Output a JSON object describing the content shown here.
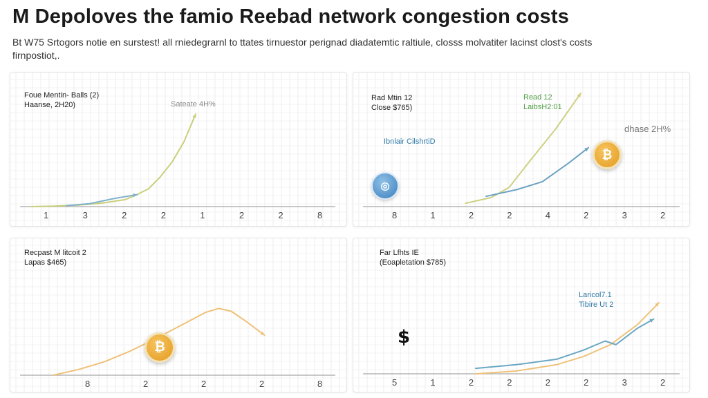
{
  "title": "M Depoloves the famio Reebad network congestion costs",
  "subtitle": "Bt W75 Srtogors notie en surstest! all rniedegrarnl to ttates tirnuestor perignad diadatemtic raltiule, closss molvatiter lacinst clost's costs firnpostiot,.",
  "chart_data": [
    {
      "type": "line",
      "label_line1": "Foue Mentin- Balls (2)",
      "label_line2": "Haanse, 2H20)",
      "annotation": "Sateate 4H%",
      "tick_labels": [
        "1",
        "3",
        "2",
        "2",
        "1",
        "2",
        "2",
        "8"
      ],
      "xlim": [
        0,
        10
      ],
      "ylim": [
        0,
        10
      ],
      "series": [
        {
          "color": "#c9cf7a",
          "x": [
            0,
            1,
            2,
            3,
            4,
            4.5,
            5,
            5.5,
            6,
            6.5,
            7
          ],
          "y": [
            0,
            0.05,
            0.15,
            0.35,
            0.7,
            1.2,
            1.8,
            3.0,
            4.5,
            6.5,
            9.3
          ]
        },
        {
          "color": "#7fb0cc",
          "x": [
            1.5,
            2.5,
            3.5,
            4.5
          ],
          "y": [
            0.1,
            0.3,
            0.8,
            1.2
          ]
        }
      ]
    },
    {
      "type": "line",
      "label_line1": "Rad Mtin 12",
      "label_line2": "Close $765)",
      "annotation_green_1": "Read 12",
      "annotation_green_2": "LaibsH2:01",
      "annotation_gray": "dhase 2H%",
      "annotation_blue": "Ibnlair CilshrtiD",
      "tick_labels": [
        "8",
        "1",
        "2",
        "2",
        "4",
        "2",
        "3",
        "2"
      ],
      "xlim": [
        0,
        10
      ],
      "ylim": [
        0,
        10
      ],
      "series": [
        {
          "color": "#cfd082",
          "x": [
            2.5,
            3.5,
            4.2,
            5,
            6,
            7
          ],
          "y": [
            0.3,
            0.8,
            1.7,
            4.0,
            6.8,
            10.0
          ]
        },
        {
          "color": "#6aa2c4",
          "x": [
            3.3,
            4.5,
            5.5,
            6.5,
            7.3
          ],
          "y": [
            0.9,
            1.5,
            2.2,
            3.8,
            5.2
          ]
        }
      ]
    },
    {
      "type": "line",
      "label_line1": "Recpast M litcoit 2",
      "label_line2": "Lapas $465)",
      "tick_labels": [
        "8",
        "2",
        "2",
        "2",
        "8"
      ],
      "xlim": [
        0,
        10
      ],
      "ylim": [
        0,
        10
      ],
      "series": [
        {
          "color": "#efc077",
          "x": [
            0,
            1,
            2,
            3,
            4,
            5,
            6,
            6.5,
            7,
            7.6,
            8.3
          ],
          "y": [
            0,
            0.6,
            1.4,
            2.5,
            3.8,
            5.2,
            6.6,
            7.0,
            6.7,
            5.6,
            4.2
          ]
        }
      ]
    },
    {
      "type": "line",
      "label_line1": "Far Lfhts IE",
      "label_line2": "(Eoapletation $785)",
      "annotation_blue_1": "Laricol7.1",
      "annotation_blue_2": "Tibire Ut 2",
      "tick_labels": [
        "5",
        "1",
        "2",
        "2",
        "2",
        "2",
        "3",
        "2"
      ],
      "xlim": [
        0,
        10
      ],
      "ylim": [
        0,
        10
      ],
      "series": [
        {
          "color": "#efc27a",
          "x": [
            3,
            4.5,
            6,
            7,
            8,
            9,
            9.8
          ],
          "y": [
            0,
            0.3,
            1.0,
            1.9,
            3.2,
            5.4,
            7.8
          ]
        },
        {
          "color": "#6aa7c4",
          "x": [
            3,
            4.5,
            6,
            7,
            7.8,
            8.2,
            9,
            9.6
          ],
          "y": [
            0.6,
            1.0,
            1.6,
            2.6,
            3.6,
            3.2,
            5.0,
            6.0
          ]
        }
      ]
    }
  ]
}
